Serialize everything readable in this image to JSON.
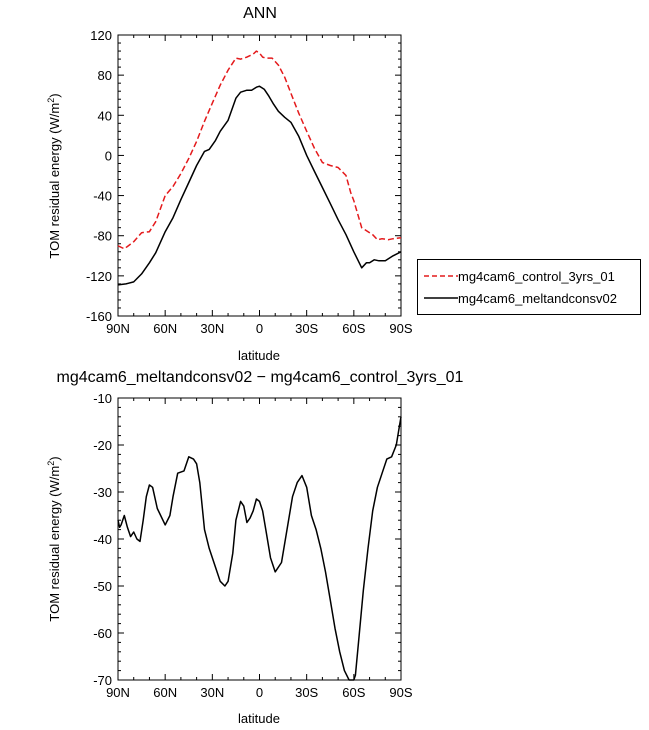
{
  "chart_data": [
    {
      "type": "line",
      "title": "ANN",
      "xlabel": "latitude",
      "ylabel": "TOM residual energy  (W/m",
      "ylabel_sup": "2",
      "ylabel_close": ")",
      "xlim": [
        90,
        -90
      ],
      "ylim": [
        -160,
        120
      ],
      "x_ticks": [
        90,
        60,
        30,
        0,
        -30,
        -60,
        -90
      ],
      "x_tick_labels": [
        "90N",
        "60N",
        "30N",
        "0",
        "30S",
        "60S",
        "90S"
      ],
      "y_ticks": [
        -160,
        -120,
        -80,
        -40,
        0,
        40,
        80,
        120
      ],
      "y_tick_labels": [
        "-160",
        "-120",
        "-80",
        "-40",
        "0",
        "40",
        "80",
        "120"
      ],
      "legend_position": "right",
      "series": [
        {
          "name": "mg4cam6_control_3yrs_01",
          "color": "#e41a1c",
          "style": "dashed",
          "x": [
            90,
            86,
            80,
            75,
            70,
            66,
            60,
            55,
            50,
            45,
            40,
            35,
            30,
            25,
            20,
            15,
            12,
            8,
            4,
            2,
            0,
            -2,
            -4,
            -8,
            -12,
            -16,
            -20,
            -25,
            -30,
            -35,
            -40,
            -45,
            -50,
            -55,
            -58,
            -60,
            -65,
            -70,
            -72,
            -75,
            -78,
            -82,
            -85,
            -90
          ],
          "y": [
            -90,
            -93,
            -86,
            -77,
            -76,
            -66,
            -40,
            -31,
            -18,
            -3,
            14,
            34,
            52,
            70,
            85,
            97,
            96,
            98,
            101,
            104,
            102,
            98,
            97,
            97,
            90,
            78,
            62,
            42,
            24,
            7,
            -7,
            -10,
            -12,
            -20,
            -37,
            -45,
            -72,
            -77,
            -79,
            -84,
            -83,
            -84,
            -83,
            -82
          ]
        },
        {
          "name": "mg4cam6_meltandconsv02",
          "color": "#000000",
          "style": "solid",
          "x": [
            90,
            85,
            80,
            75,
            70,
            66,
            60,
            55,
            50,
            45,
            40,
            35,
            32,
            28,
            25,
            20,
            15,
            12,
            8,
            5,
            2,
            0,
            -3,
            -6,
            -9,
            -12,
            -16,
            -20,
            -25,
            -30,
            -35,
            -40,
            -45,
            -50,
            -55,
            -60,
            -65,
            -68,
            -70,
            -73,
            -76,
            -80,
            -85,
            -90
          ],
          "y": [
            -129,
            -128,
            -126,
            -118,
            -107,
            -97,
            -76,
            -62,
            -44,
            -27,
            -10,
            4,
            6,
            15,
            24,
            35,
            57,
            63,
            65,
            65,
            68,
            69,
            66,
            59,
            51,
            44,
            38,
            33,
            19,
            0,
            -16,
            -32,
            -48,
            -64,
            -79,
            -96,
            -112,
            -107,
            -107,
            -104,
            -105,
            -105,
            -100,
            -96
          ]
        }
      ]
    },
    {
      "type": "line",
      "title": "mg4cam6_meltandconsv02 − mg4cam6_control_3yrs_01",
      "xlabel": "latitude",
      "ylabel": "TOM residual energy  (W/m",
      "ylabel_sup": "2",
      "ylabel_close": ")",
      "xlim": [
        90,
        -90
      ],
      "ylim": [
        -70,
        -10
      ],
      "x_ticks": [
        90,
        60,
        30,
        0,
        -30,
        -60,
        -90
      ],
      "x_tick_labels": [
        "90N",
        "60N",
        "30N",
        "0",
        "30S",
        "60S",
        "90S"
      ],
      "y_ticks": [
        -70,
        -60,
        -50,
        -40,
        -30,
        -20,
        -10
      ],
      "y_tick_labels": [
        "-70",
        "-60",
        "-50",
        "-40",
        "-30",
        "-20",
        "-10"
      ],
      "series": [
        {
          "color": "#000000",
          "style": "solid",
          "x": [
            90,
            89,
            88,
            86,
            84,
            82,
            80,
            78,
            76,
            74,
            72,
            70,
            68,
            65,
            60,
            57,
            55,
            52,
            48,
            45,
            42,
            40,
            38,
            35,
            32,
            28,
            25,
            22,
            20,
            17,
            15,
            12,
            10,
            8,
            6,
            4,
            2,
            0,
            -2,
            -4,
            -7,
            -10,
            -14,
            -18,
            -21,
            -24,
            -27,
            -30,
            -33,
            -36,
            -39,
            -42,
            -45,
            -48,
            -51,
            -54,
            -57,
            -60,
            -61,
            -63,
            -66,
            -69,
            -72,
            -75,
            -78,
            -81,
            -84,
            -87,
            -89,
            -90
          ],
          "y": [
            -36,
            -37.5,
            -37,
            -35,
            -37.5,
            -39.5,
            -38.5,
            -40,
            -40.5,
            -36,
            -31,
            -28.5,
            -29,
            -33.5,
            -37,
            -35,
            -31,
            -26,
            -25.5,
            -22.5,
            -23,
            -24,
            -28,
            -38,
            -42,
            -46,
            -49,
            -50,
            -49,
            -43,
            -36,
            -32,
            -33,
            -36.5,
            -35.5,
            -34,
            -31.5,
            -32,
            -34,
            -38,
            -44,
            -47,
            -45,
            -37,
            -31,
            -28,
            -26.5,
            -29,
            -35,
            -38,
            -42,
            -47,
            -53,
            -59,
            -64,
            -68,
            -70,
            -70,
            -69,
            -62,
            -51,
            -42,
            -34,
            -29,
            -26,
            -23,
            -22.5,
            -20,
            -16,
            -14
          ]
        }
      ]
    }
  ]
}
